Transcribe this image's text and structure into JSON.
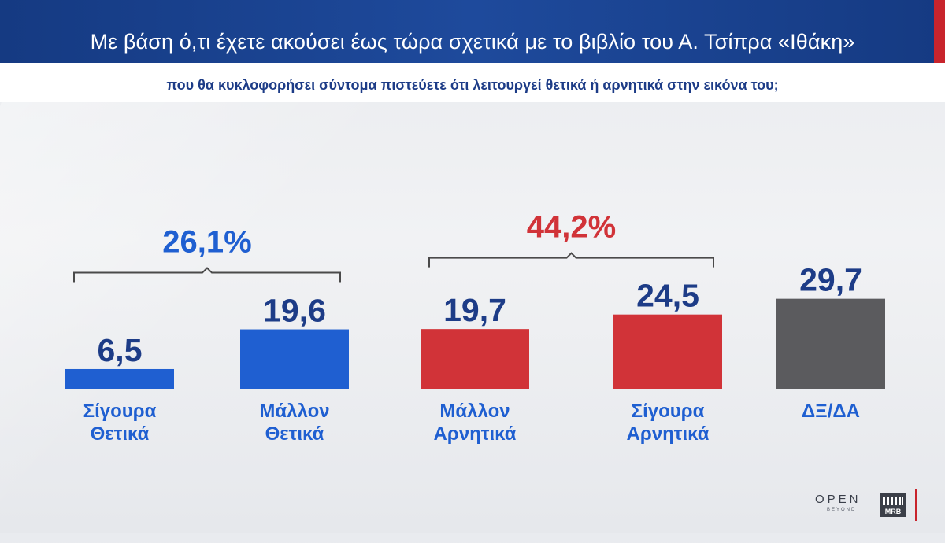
{
  "header": {
    "title": "Με βάση ό,τι έχετε ακούσει έως τώρα σχετικά με το βιβλίο του Α. Τσίπρα «Ιθάκη»",
    "subtitle": "που θα κυκλοφορήσει σύντομα πιστεύετε ότι λειτουργεί θετικά ή αρνητικά στην εικόνα του;"
  },
  "chart_data": {
    "type": "bar",
    "title": "",
    "xlabel": "",
    "ylabel": "",
    "ylim": [
      0,
      30
    ],
    "grid": false,
    "legend": "none",
    "categories": [
      [
        "Σίγουρα",
        "Θετικά"
      ],
      [
        "Μάλλον",
        "Θετικά"
      ],
      [
        "Μάλλον",
        "Αρνητικά"
      ],
      [
        "Σίγουρα",
        "Αρνητικά"
      ],
      [
        "ΔΞ/ΔΑ"
      ]
    ],
    "values": [
      6.5,
      19.6,
      19.7,
      24.5,
      29.7
    ],
    "value_labels": [
      "6,5",
      "19,6",
      "19,7",
      "24,5",
      "29,7"
    ],
    "bar_colors": [
      "#1f5fd1",
      "#1f5fd1",
      "#d13338",
      "#d13338",
      "#5b5b5e"
    ],
    "groups": [
      {
        "label": "26,1%",
        "from": 0,
        "to": 1,
        "color": "#1f5fd1"
      },
      {
        "label": "44,2%",
        "from": 2,
        "to": 3,
        "color": "#d13338"
      }
    ],
    "value_label_color": "#1d3c87",
    "category_label_color": "#1f5fd1"
  },
  "logos": {
    "open": "OPEN",
    "beyond": "BEYOND",
    "mrb": "MRB"
  }
}
